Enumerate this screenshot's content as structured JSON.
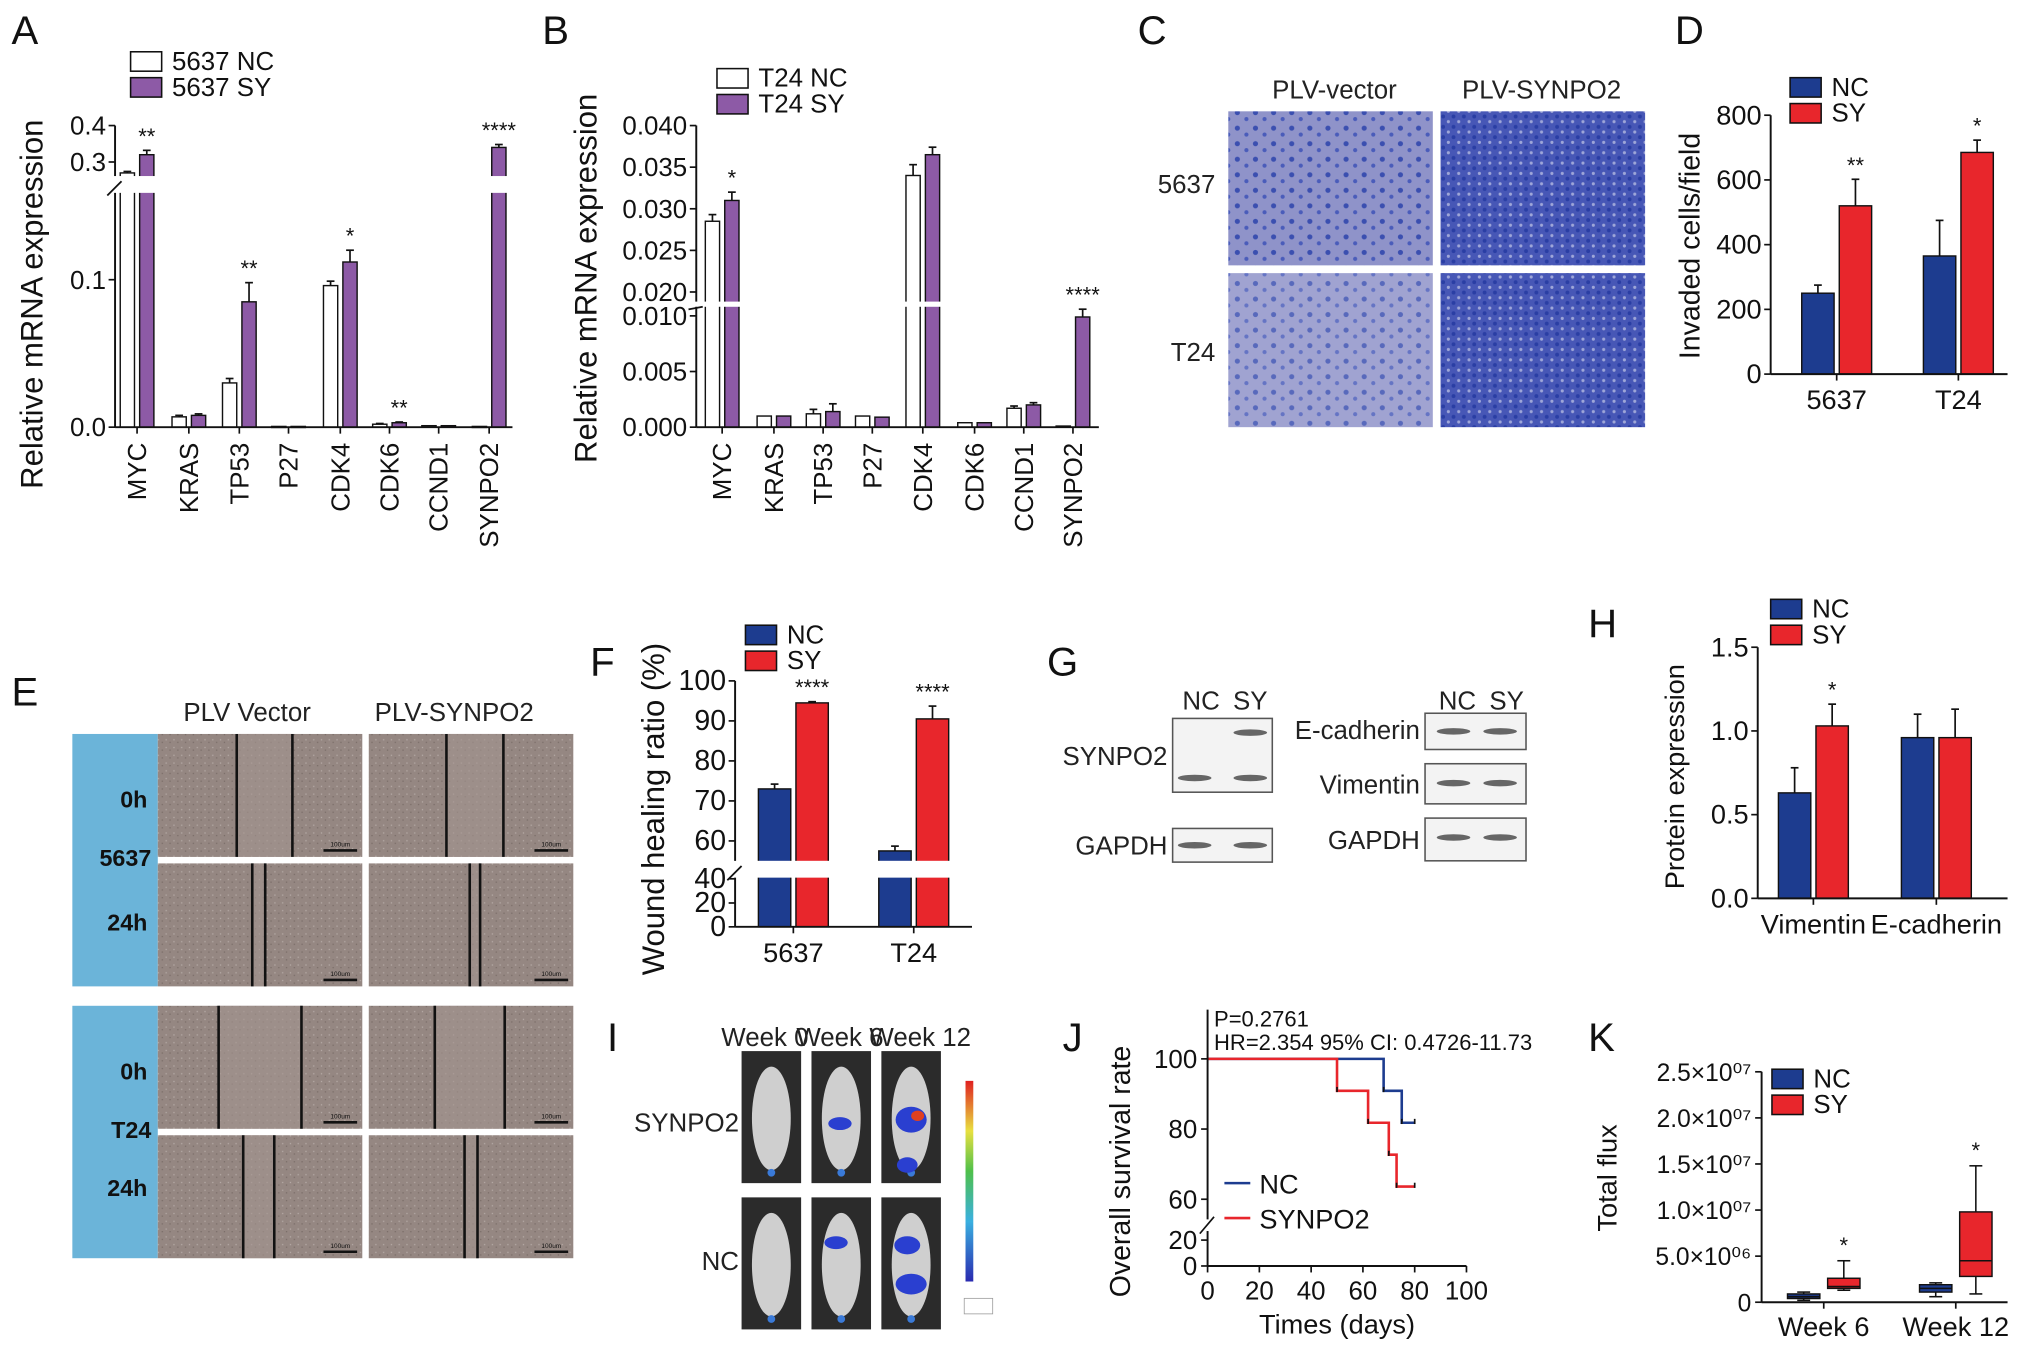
{
  "panels": {
    "A": "A",
    "B": "B",
    "C": "C",
    "D": "D",
    "E": "E",
    "F": "F",
    "G": "G",
    "H": "H",
    "I": "I",
    "J": "J",
    "K": "K"
  },
  "panel_c": {
    "col_headers": [
      "PLV-vector",
      "PLV-SYNPO2"
    ],
    "row_labels": [
      "5637",
      "T24"
    ]
  },
  "panel_e": {
    "col_headers": [
      "PLV Vector",
      "PLV-SYNPO2"
    ],
    "cell_lines": [
      "5637",
      "T24"
    ],
    "times": [
      "0h",
      "24h"
    ],
    "scale_bar": "100um"
  },
  "panel_g": {
    "lane_labels": [
      "NC",
      "SY"
    ],
    "left_blots": [
      "SYNPO2",
      "GAPDH"
    ],
    "right_blots": [
      "E-cadherin",
      "Vimentin",
      "GAPDH"
    ]
  },
  "panel_i": {
    "col_headers": [
      "Week 0",
      "Week 6",
      "Week 12"
    ],
    "row_labels": [
      "SYNPO2",
      "NC"
    ]
  },
  "colors": {
    "purple": "#8d5aa6",
    "nc_blue": "#1d3c8f",
    "sy_red": "#e8262c",
    "white": "#ffffff"
  },
  "chart_data": [
    {
      "id": "A",
      "type": "bar",
      "ylabel": "Relative mRNA expression",
      "categories": [
        "MYC",
        "KRAS",
        "TP53",
        "P27",
        "CDK4",
        "CDK6",
        "CCND1",
        "SYNPO2"
      ],
      "series": [
        {
          "name": "5637 NC",
          "values": [
            0.27,
            0.007,
            0.03,
            0.0005,
            0.096,
            0.002,
            0.001,
            0.0005
          ],
          "errors": [
            0.004,
            0.001,
            0.003,
            0,
            0.003,
            0.0005,
            0,
            0
          ]
        },
        {
          "name": "5637 SY",
          "values": [
            0.32,
            0.008,
            0.085,
            0.0005,
            0.112,
            0.003,
            0.001,
            0.34
          ],
          "errors": [
            0.012,
            0.001,
            0.013,
            0,
            0.008,
            0.0005,
            0,
            0.008
          ]
        }
      ],
      "significance": [
        "**",
        "",
        "**",
        "",
        "*",
        "**",
        "",
        "****"
      ],
      "yticks": [
        {
          "v": 0,
          "label": "0.0"
        },
        {
          "v": 0.1,
          "label": "0.1"
        },
        {
          "v": 0.3,
          "label": "0.3"
        },
        {
          "v": 0.4,
          "label": "0.4"
        }
      ],
      "axis_break": [
        0.158,
        0.265
      ]
    },
    {
      "id": "B",
      "type": "bar",
      "ylabel": "Relative mRNA expression",
      "categories": [
        "MYC",
        "KRAS",
        "TP53",
        "P27",
        "CDK4",
        "CDK6",
        "CCND1",
        "SYNPO2"
      ],
      "series": [
        {
          "name": "T24 NC",
          "values": [
            0.0285,
            0.001,
            0.0012,
            0.001,
            0.034,
            0.0004,
            0.0017,
            0.0001
          ],
          "errors": [
            0.0008,
            0,
            0.0004,
            0,
            0.0013,
            0,
            0.0002,
            0
          ]
        },
        {
          "name": "T24 SY",
          "values": [
            0.031,
            0.001,
            0.0014,
            0.0009,
            0.0365,
            0.0004,
            0.002,
            0.0099
          ],
          "errors": [
            0.001,
            0,
            0.0007,
            0,
            0.0009,
            0,
            0.0002,
            0.0007
          ]
        }
      ],
      "significance": [
        "*",
        "",
        "",
        "",
        "",
        "",
        "",
        "****"
      ],
      "yticks": [
        {
          "v": 0,
          "label": "0.000"
        },
        {
          "v": 0.005,
          "label": "0.005"
        },
        {
          "v": 0.01,
          "label": "0.010"
        },
        {
          "v": 0.02,
          "label": "0.020"
        },
        {
          "v": 0.025,
          "label": "0.025"
        },
        {
          "v": 0.03,
          "label": "0.030"
        },
        {
          "v": 0.035,
          "label": "0.035"
        },
        {
          "v": 0.04,
          "label": "0.040"
        }
      ],
      "axis_break": [
        0.0107,
        0.019
      ]
    },
    {
      "id": "D",
      "type": "bar",
      "ylabel": "Invaded cells/field",
      "categories": [
        "5637",
        "T24"
      ],
      "series": [
        {
          "name": "NC",
          "values": [
            250,
            365
          ],
          "errors": [
            25,
            110
          ]
        },
        {
          "name": "SY",
          "values": [
            520,
            685
          ],
          "errors": [
            82,
            38
          ]
        }
      ],
      "significance": [
        "**",
        "*"
      ],
      "yticks": [
        {
          "v": 0,
          "label": "0"
        },
        {
          "v": 200,
          "label": "200"
        },
        {
          "v": 400,
          "label": "400"
        },
        {
          "v": 600,
          "label": "600"
        },
        {
          "v": 800,
          "label": "800"
        }
      ],
      "ylim": [
        0,
        800
      ]
    },
    {
      "id": "F",
      "type": "bar",
      "ylabel": "Wound healing ratio (%)",
      "categories": [
        "5637",
        "T24"
      ],
      "series": [
        {
          "name": "NC",
          "values": [
            73,
            57.5
          ],
          "errors": [
            1.2,
            1.2
          ]
        },
        {
          "name": "SY",
          "values": [
            94.5,
            90.5
          ],
          "errors": [
            0.3,
            3.2
          ]
        }
      ],
      "significance": [
        "****",
        "****"
      ],
      "yticks": [
        {
          "v": 0,
          "label": "0"
        },
        {
          "v": 20,
          "label": "20"
        },
        {
          "v": 40,
          "label": "40"
        },
        {
          "v": 60,
          "label": "60"
        },
        {
          "v": 70,
          "label": "70"
        },
        {
          "v": 80,
          "label": "80"
        },
        {
          "v": 90,
          "label": "90"
        },
        {
          "v": 100,
          "label": "100"
        }
      ],
      "axis_break": [
        38,
        56
      ]
    },
    {
      "id": "H",
      "type": "bar",
      "ylabel": "Protein expression",
      "categories": [
        "Vimentin",
        "E-cadherin"
      ],
      "series": [
        {
          "name": "NC",
          "values": [
            0.63,
            0.96
          ],
          "errors": [
            0.15,
            0.14
          ]
        },
        {
          "name": "SY",
          "values": [
            1.03,
            0.96
          ],
          "errors": [
            0.13,
            0.17
          ]
        }
      ],
      "significance": [
        "*",
        ""
      ],
      "yticks": [
        {
          "v": 0,
          "label": "0.0"
        },
        {
          "v": 0.5,
          "label": "0.5"
        },
        {
          "v": 1.0,
          "label": "1.0"
        },
        {
          "v": 1.5,
          "label": "1.5"
        }
      ],
      "ylim": [
        0,
        1.5
      ]
    },
    {
      "id": "J",
      "type": "line",
      "title_lines": [
        "P=0.2761",
        "HR=2.354 95% CI: 0.4726-11.73"
      ],
      "xlabel": "Times (days)",
      "ylabel": "Overall survival rate",
      "xticks": [
        0,
        20,
        40,
        60,
        80,
        100
      ],
      "yticks": [
        {
          "v": 0,
          "label": "0"
        },
        {
          "v": 20,
          "label": "20"
        },
        {
          "v": 60,
          "label": "60"
        },
        {
          "v": 80,
          "label": "80"
        },
        {
          "v": 100,
          "label": "100"
        }
      ],
      "axis_break": [
        25,
        55
      ],
      "series": [
        {
          "name": "NC",
          "steps": [
            [
              0,
              100
            ],
            [
              68,
              100
            ],
            [
              68,
              90.9
            ],
            [
              75,
              90.9
            ],
            [
              75,
              81.8
            ],
            [
              80,
              81.8
            ]
          ]
        },
        {
          "name": "SYNPO2",
          "steps": [
            [
              0,
              100
            ],
            [
              50,
              100
            ],
            [
              50,
              90.9
            ],
            [
              62,
              90.9
            ],
            [
              62,
              81.8
            ],
            [
              70,
              81.8
            ],
            [
              70,
              72.7
            ],
            [
              73,
              72.7
            ],
            [
              73,
              63.6
            ],
            [
              80,
              63.6
            ]
          ]
        }
      ]
    },
    {
      "id": "K",
      "type": "box",
      "ylabel": "Total flux",
      "categories": [
        "Week 6",
        "Week 12"
      ],
      "series": [
        {
          "name": "NC",
          "boxes": [
            [
              200000,
              400000,
              600000,
              900000,
              1100000
            ],
            [
              600000,
              1100000,
              1500000,
              1900000,
              2100000
            ]
          ]
        },
        {
          "name": "SY",
          "boxes": [
            [
              1300000,
              1500000,
              1700000,
              2600000,
              4500000
            ],
            [
              900000,
              2800000,
              4500000,
              9800000,
              14800000
            ]
          ]
        }
      ],
      "significance": [
        "*",
        "*"
      ],
      "yticks": [
        {
          "v": 0,
          "label": "0"
        },
        {
          "v": 5000000,
          "label": "5.0×10⁰⁶"
        },
        {
          "v": 10000000,
          "label": "1.0×10⁰⁷"
        },
        {
          "v": 15000000,
          "label": "1.5×10⁰⁷"
        },
        {
          "v": 20000000,
          "label": "2.0×10⁰⁷"
        },
        {
          "v": 25000000,
          "label": "2.5×10⁰⁷"
        }
      ],
      "ylim": [
        0,
        25000000
      ]
    }
  ]
}
